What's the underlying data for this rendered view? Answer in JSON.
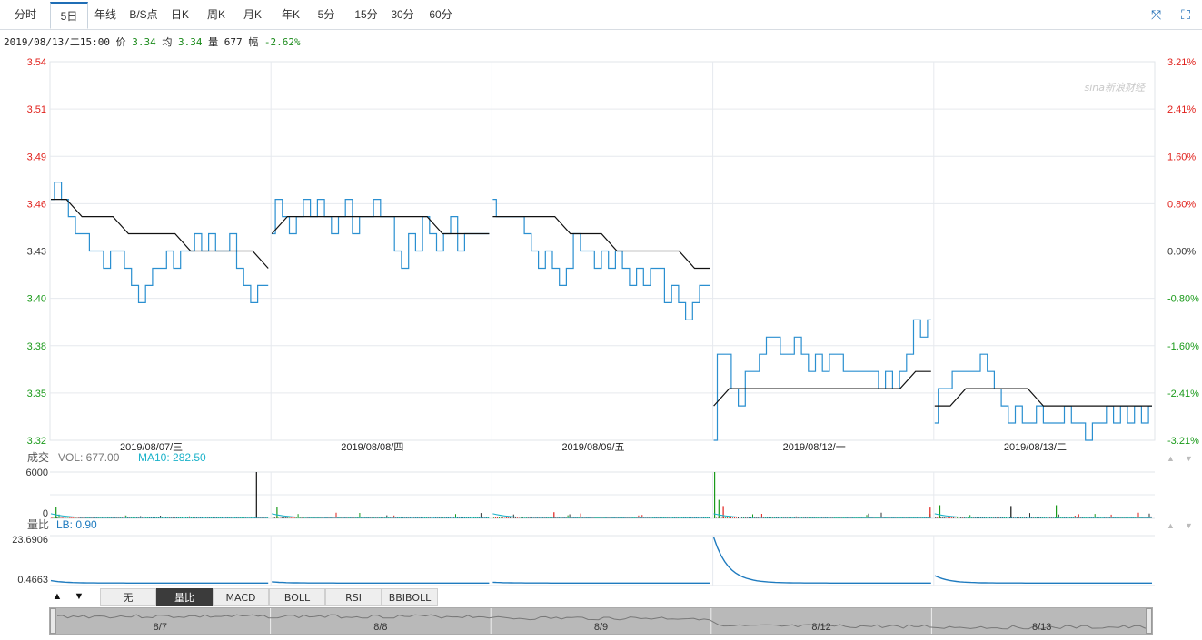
{
  "tabs": [
    {
      "label": "分时"
    },
    {
      "label": "5日"
    },
    {
      "label": "年线"
    },
    {
      "label": "B/S点"
    },
    {
      "label": "日K"
    },
    {
      "label": "周K"
    },
    {
      "label": "月K"
    },
    {
      "label": "年K"
    },
    {
      "label": "5分"
    },
    {
      "label": "15分"
    },
    {
      "label": "30分"
    },
    {
      "label": "60分"
    }
  ],
  "active_tab": 1,
  "tool_icons": [
    "collapse-icon",
    "fullscreen-icon"
  ],
  "info": {
    "datetime": "2019/08/13/二15:00",
    "price_label": "价",
    "price": "3.34",
    "avg_label": "均",
    "avg": "3.34",
    "vol_label": "量",
    "vol": "677",
    "chg_label": "幅",
    "chg": "-2.62%"
  },
  "watermark": "sina新浪财经",
  "volume_panel": {
    "title": "成交",
    "vol_label": "VOL: 677.00",
    "ma_label": "MA10: 282.50",
    "ticks": [
      "6000",
      "0"
    ]
  },
  "ratio_panel": {
    "title": "量比",
    "lb_label": "LB: 0.90",
    "ticks": [
      "23.6906",
      "0.4663"
    ]
  },
  "indicator_tabs": [
    {
      "label": "无"
    },
    {
      "label": "量比"
    },
    {
      "label": "MACD"
    },
    {
      "label": "BOLL"
    },
    {
      "label": "RSI"
    },
    {
      "label": "BBIBOLL"
    }
  ],
  "active_indicator": 1,
  "navigator_labels": [
    "8/7",
    "8/8",
    "8/9",
    "8/12",
    "8/13"
  ],
  "colors": {
    "price_line": "#2a8fd0",
    "avg_line": "#111111",
    "up": "#e0201b",
    "down": "#1a9a1a",
    "ma": "#1ab2c9",
    "grid": "#e6e9ee"
  },
  "chart_data": {
    "type": "line",
    "title": "",
    "pre_close": 3.43,
    "ylim": [
      3.32,
      3.54
    ],
    "y_ticks_left": [
      "3.54",
      "3.51",
      "3.49",
      "3.46",
      "3.43",
      "3.40",
      "3.38",
      "3.35",
      "3.32"
    ],
    "y_ticks_right": [
      "3.21%",
      "2.41%",
      "1.60%",
      "0.80%",
      "0.00%",
      "-0.80%",
      "-1.60%",
      "-2.41%",
      "-3.21%"
    ],
    "days": [
      "2019/08/07/三",
      "2019/08/08/四",
      "2019/08/09/五",
      "2019/08/12/一",
      "2019/08/13/二"
    ],
    "series": [
      {
        "name": "价",
        "day_prices": [
          [
            3.46,
            3.47,
            3.46,
            3.45,
            3.44,
            3.44,
            3.43,
            3.43,
            3.42,
            3.43,
            3.43,
            3.42,
            3.41,
            3.4,
            3.41,
            3.42,
            3.42,
            3.43,
            3.42,
            3.43,
            3.43,
            3.44,
            3.43,
            3.44,
            3.43,
            3.43,
            3.44,
            3.42,
            3.41,
            3.4,
            3.41,
            3.41
          ],
          [
            3.44,
            3.46,
            3.45,
            3.44,
            3.45,
            3.46,
            3.45,
            3.46,
            3.45,
            3.44,
            3.45,
            3.46,
            3.44,
            3.45,
            3.45,
            3.46,
            3.45,
            3.45,
            3.43,
            3.42,
            3.44,
            3.43,
            3.45,
            3.44,
            3.43,
            3.44,
            3.45,
            3.43,
            3.44,
            3.44,
            3.44,
            3.44
          ],
          [
            3.46,
            3.45,
            3.45,
            3.45,
            3.45,
            3.44,
            3.43,
            3.42,
            3.43,
            3.42,
            3.41,
            3.42,
            3.44,
            3.43,
            3.43,
            3.42,
            3.43,
            3.42,
            3.43,
            3.42,
            3.41,
            3.42,
            3.41,
            3.42,
            3.42,
            3.4,
            3.41,
            3.4,
            3.39,
            3.4,
            3.41,
            3.41
          ],
          [
            3.32,
            3.37,
            3.37,
            3.35,
            3.34,
            3.36,
            3.36,
            3.37,
            3.38,
            3.38,
            3.37,
            3.37,
            3.38,
            3.37,
            3.36,
            3.37,
            3.36,
            3.37,
            3.37,
            3.36,
            3.36,
            3.36,
            3.36,
            3.36,
            3.35,
            3.36,
            3.35,
            3.36,
            3.37,
            3.39,
            3.38,
            3.39
          ],
          [
            3.33,
            3.35,
            3.35,
            3.36,
            3.36,
            3.36,
            3.36,
            3.37,
            3.36,
            3.35,
            3.34,
            3.33,
            3.34,
            3.33,
            3.33,
            3.34,
            3.33,
            3.33,
            3.33,
            3.34,
            3.33,
            3.33,
            3.32,
            3.33,
            3.33,
            3.34,
            3.33,
            3.34,
            3.33,
            3.34,
            3.33,
            3.34
          ]
        ]
      },
      {
        "name": "均",
        "day_prices": [
          [
            3.46,
            3.46,
            3.45,
            3.45,
            3.45,
            3.44,
            3.44,
            3.44,
            3.44,
            3.43,
            3.43,
            3.43,
            3.43,
            3.43,
            3.42
          ],
          [
            3.44,
            3.45,
            3.45,
            3.45,
            3.45,
            3.45,
            3.45,
            3.45,
            3.45,
            3.45,
            3.45,
            3.44,
            3.44,
            3.44,
            3.44
          ],
          [
            3.45,
            3.45,
            3.45,
            3.45,
            3.45,
            3.44,
            3.44,
            3.44,
            3.43,
            3.43,
            3.43,
            3.43,
            3.43,
            3.42,
            3.42
          ],
          [
            3.34,
            3.35,
            3.35,
            3.35,
            3.35,
            3.35,
            3.35,
            3.35,
            3.35,
            3.35,
            3.35,
            3.35,
            3.35,
            3.36,
            3.36
          ],
          [
            3.34,
            3.34,
            3.35,
            3.35,
            3.35,
            3.35,
            3.35,
            3.34,
            3.34,
            3.34,
            3.34,
            3.34,
            3.34,
            3.34,
            3.34
          ]
        ]
      }
    ],
    "volume_max": 6000,
    "volume_spikes": [
      {
        "day": 0,
        "pos": 0.02,
        "value": 1500,
        "color": "down"
      },
      {
        "day": 0,
        "pos": 0.95,
        "value": 6000,
        "color": "neutral"
      },
      {
        "day": 1,
        "pos": 0.02,
        "value": 1500,
        "color": "down"
      },
      {
        "day": 2,
        "pos": 0.28,
        "value": 800,
        "color": "up"
      },
      {
        "day": 3,
        "pos": 0.0,
        "value": 6000,
        "color": "down"
      },
      {
        "day": 3,
        "pos": 0.02,
        "value": 2400,
        "color": "down"
      },
      {
        "day": 3,
        "pos": 0.04,
        "value": 1600,
        "color": "up"
      },
      {
        "day": 3,
        "pos": 1.0,
        "value": 1400,
        "color": "up"
      },
      {
        "day": 4,
        "pos": 0.02,
        "value": 1700,
        "color": "down"
      },
      {
        "day": 4,
        "pos": 0.35,
        "value": 1600,
        "color": "neutral"
      },
      {
        "day": 4,
        "pos": 0.56,
        "value": 1700,
        "color": "down"
      }
    ],
    "ratio_range": [
      0.4663,
      23.6906
    ],
    "ratio_start": [
      2.0,
      1.4,
      1.2,
      23.69,
      4.5
    ]
  }
}
